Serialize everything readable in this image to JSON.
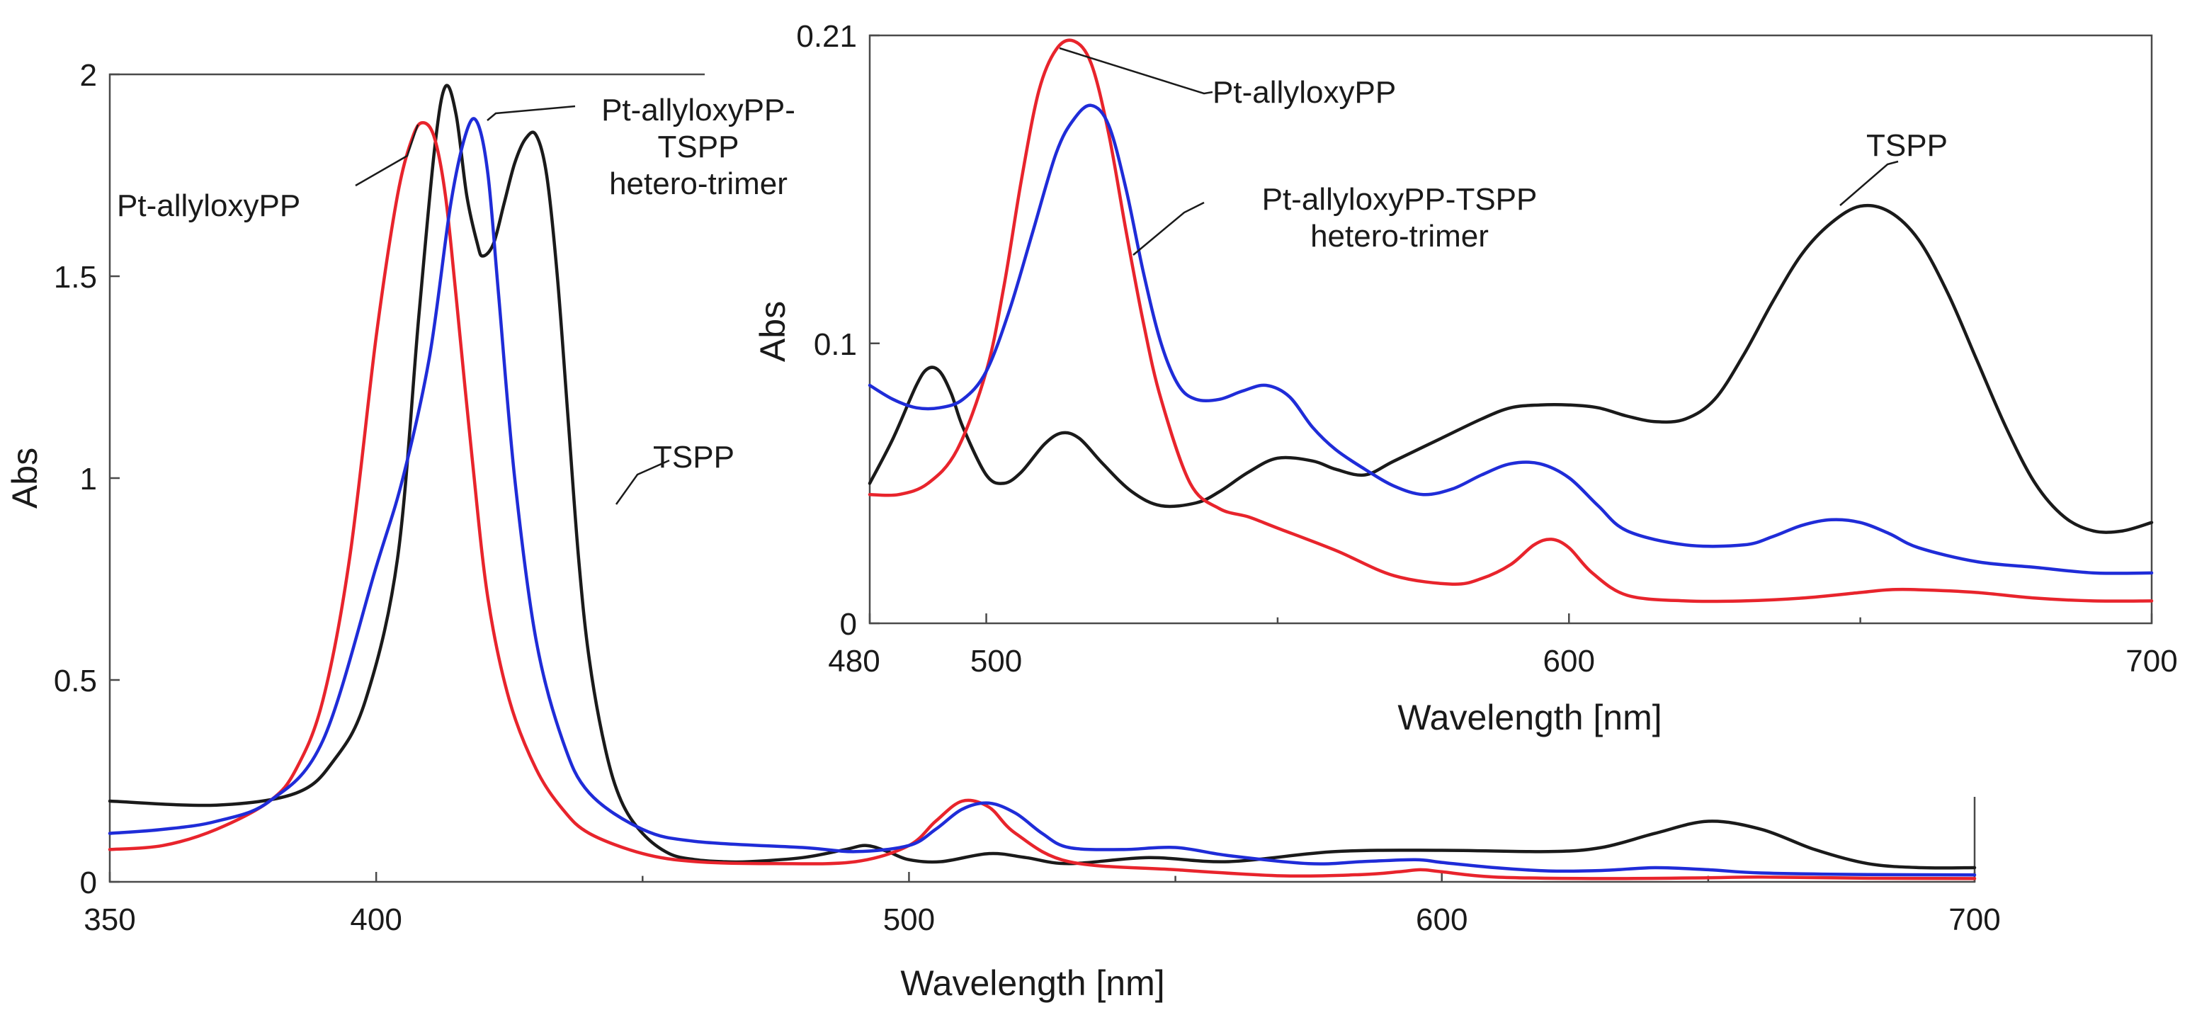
{
  "chart_data": [
    {
      "type": "line",
      "title": "",
      "xlabel": "Wavelength [nm]",
      "ylabel": "Abs",
      "xlim": [
        350,
        700
      ],
      "ylim": [
        0,
        2
      ],
      "x_ticks": [
        350,
        400,
        500,
        600,
        700
      ],
      "x_minor_ticks": [
        450,
        550,
        650
      ],
      "y_ticks": [
        0,
        0.5,
        1,
        1.5,
        2
      ],
      "x_tick_labels": [
        "350",
        "400",
        "500",
        "600",
        "700"
      ],
      "y_tick_labels": [
        "0",
        "0.5",
        "1",
        "1.5",
        "2"
      ],
      "series": [
        {
          "name": "TSPP",
          "color": "#1a1a1a",
          "x": [
            350,
            370,
            385,
            392,
            398,
            404,
            408,
            411,
            413,
            415,
            417,
            419,
            420,
            422,
            424,
            426,
            428,
            430,
            432,
            434,
            436,
            438,
            440,
            443,
            446,
            450,
            455,
            460,
            465,
            470,
            480,
            488,
            492,
            496,
            500,
            506,
            515,
            522,
            530,
            545,
            560,
            580,
            600,
            620,
            630,
            640,
            650,
            660,
            670,
            680,
            690,
            700
          ],
          "y": [
            0.2,
            0.19,
            0.22,
            0.3,
            0.45,
            0.8,
            1.4,
            1.82,
            1.97,
            1.9,
            1.7,
            1.58,
            1.55,
            1.58,
            1.68,
            1.78,
            1.84,
            1.85,
            1.75,
            1.5,
            1.15,
            0.8,
            0.55,
            0.33,
            0.2,
            0.12,
            0.07,
            0.055,
            0.05,
            0.05,
            0.06,
            0.08,
            0.09,
            0.075,
            0.055,
            0.05,
            0.07,
            0.06,
            0.045,
            0.06,
            0.05,
            0.075,
            0.078,
            0.075,
            0.085,
            0.12,
            0.15,
            0.13,
            0.08,
            0.045,
            0.035,
            0.035
          ]
        },
        {
          "name": "Pt-allyloxyPP",
          "color": "#e8242c",
          "x": [
            350,
            360,
            370,
            380,
            385,
            390,
            395,
            400,
            404,
            407,
            409,
            411,
            413,
            415,
            418,
            421,
            425,
            430,
            435,
            440,
            450,
            460,
            475,
            490,
            500,
            505,
            510,
            515,
            520,
            530,
            550,
            570,
            585,
            592,
            596,
            600,
            610,
            630,
            650,
            660,
            680,
            700
          ],
          "y": [
            0.08,
            0.09,
            0.13,
            0.2,
            0.28,
            0.45,
            0.8,
            1.35,
            1.7,
            1.85,
            1.88,
            1.84,
            1.7,
            1.45,
            1.05,
            0.7,
            0.45,
            0.28,
            0.18,
            0.12,
            0.07,
            0.05,
            0.045,
            0.05,
            0.09,
            0.15,
            0.2,
            0.185,
            0.12,
            0.05,
            0.03,
            0.015,
            0.018,
            0.025,
            0.03,
            0.025,
            0.012,
            0.008,
            0.01,
            0.012,
            0.009,
            0.008
          ]
        },
        {
          "name": "Pt-allyloxyPP-TSPP hetero-trimer",
          "color": "#1f2cd8",
          "x": [
            350,
            360,
            370,
            380,
            390,
            400,
            405,
            410,
            414,
            417,
            419,
            421,
            423,
            426,
            430,
            435,
            440,
            450,
            460,
            480,
            490,
            500,
            505,
            510,
            515,
            520,
            525,
            530,
            540,
            550,
            560,
            575,
            585,
            595,
            600,
            610,
            620,
            630,
            640,
            650,
            660,
            680,
            700
          ],
          "y": [
            0.12,
            0.13,
            0.15,
            0.2,
            0.35,
            0.78,
            1.0,
            1.3,
            1.68,
            1.86,
            1.88,
            1.75,
            1.45,
            1.0,
            0.6,
            0.35,
            0.22,
            0.13,
            0.1,
            0.085,
            0.075,
            0.09,
            0.13,
            0.18,
            0.195,
            0.17,
            0.12,
            0.085,
            0.08,
            0.085,
            0.065,
            0.045,
            0.05,
            0.055,
            0.048,
            0.035,
            0.027,
            0.028,
            0.035,
            0.03,
            0.022,
            0.018,
            0.017
          ]
        }
      ],
      "annotations": [
        {
          "target": "Pt-allyloxyPP",
          "lines": [
            "Pt-allyloxyPP"
          ]
        },
        {
          "target": "Pt-allyloxyPP-TSPP hetero-trimer",
          "lines": [
            "Pt-allyloxyPP-",
            "TSPP",
            "hetero-trimer"
          ]
        },
        {
          "target": "TSPP",
          "lines": [
            "TSPP"
          ]
        }
      ]
    },
    {
      "type": "line",
      "title": "",
      "xlabel": "Wavelength [nm]",
      "ylabel": "Abs",
      "xlim": [
        480,
        700
      ],
      "ylim": [
        0,
        0.21
      ],
      "x_ticks": [
        480,
        500,
        600,
        700
      ],
      "x_minor_ticks": [
        550,
        650
      ],
      "y_ticks": [
        0,
        0.1,
        0.21
      ],
      "x_tick_labels": [
        "480",
        "500",
        "600",
        "700"
      ],
      "y_tick_labels": [
        "0",
        "0.1",
        "0.21"
      ],
      "series": [
        {
          "name": "TSPP",
          "color": "#1a1a1a",
          "x": [
            480,
            484,
            488,
            490,
            492,
            494,
            496,
            500,
            503,
            506,
            510,
            513,
            516,
            520,
            525,
            530,
            536,
            540,
            545,
            550,
            556,
            560,
            565,
            570,
            578,
            585,
            590,
            595,
            600,
            605,
            610,
            615,
            620,
            625,
            630,
            635,
            640,
            645,
            650,
            655,
            660,
            665,
            670,
            675,
            680,
            685,
            690,
            695,
            700
          ],
          "y": [
            0.05,
            0.066,
            0.085,
            0.091,
            0.09,
            0.082,
            0.07,
            0.053,
            0.05,
            0.054,
            0.064,
            0.068,
            0.066,
            0.057,
            0.047,
            0.042,
            0.043,
            0.047,
            0.054,
            0.059,
            0.058,
            0.055,
            0.053,
            0.058,
            0.066,
            0.073,
            0.077,
            0.078,
            0.078,
            0.077,
            0.074,
            0.072,
            0.073,
            0.08,
            0.096,
            0.115,
            0.132,
            0.143,
            0.149,
            0.147,
            0.137,
            0.118,
            0.094,
            0.07,
            0.05,
            0.038,
            0.033,
            0.033,
            0.036
          ]
        },
        {
          "name": "Pt-allyloxyPP",
          "color": "#e8242c",
          "x": [
            480,
            485,
            490,
            495,
            500,
            503,
            506,
            509,
            512,
            515,
            518,
            521,
            524,
            527,
            530,
            535,
            540,
            545,
            550,
            560,
            570,
            580,
            585,
            590,
            594,
            597,
            600,
            604,
            610,
            620,
            630,
            640,
            650,
            655,
            660,
            670,
            680,
            690,
            700
          ],
          "y": [
            0.046,
            0.046,
            0.05,
            0.062,
            0.09,
            0.12,
            0.158,
            0.19,
            0.205,
            0.208,
            0.2,
            0.175,
            0.14,
            0.107,
            0.08,
            0.05,
            0.041,
            0.038,
            0.034,
            0.026,
            0.017,
            0.014,
            0.016,
            0.021,
            0.028,
            0.03,
            0.027,
            0.018,
            0.01,
            0.008,
            0.008,
            0.009,
            0.011,
            0.012,
            0.012,
            0.011,
            0.009,
            0.008,
            0.008
          ]
        },
        {
          "name": "Pt-allyloxyPP-TSPP hetero-trimer",
          "color": "#1f2cd8",
          "x": [
            480,
            484,
            488,
            492,
            496,
            500,
            504,
            508,
            512,
            515,
            518,
            521,
            524,
            527,
            530,
            533,
            536,
            540,
            544,
            548,
            552,
            556,
            560,
            565,
            570,
            575,
            580,
            585,
            590,
            595,
            600,
            605,
            610,
            620,
            630,
            635,
            640,
            645,
            650,
            655,
            660,
            670,
            680,
            690,
            700
          ],
          "y": [
            0.085,
            0.08,
            0.077,
            0.077,
            0.08,
            0.09,
            0.112,
            0.14,
            0.168,
            0.18,
            0.185,
            0.178,
            0.155,
            0.125,
            0.1,
            0.085,
            0.08,
            0.08,
            0.083,
            0.085,
            0.081,
            0.07,
            0.062,
            0.055,
            0.049,
            0.046,
            0.048,
            0.053,
            0.057,
            0.057,
            0.052,
            0.042,
            0.033,
            0.028,
            0.028,
            0.031,
            0.035,
            0.037,
            0.036,
            0.032,
            0.027,
            0.022,
            0.02,
            0.018,
            0.018
          ]
        }
      ],
      "annotations": [
        {
          "target": "Pt-allyloxyPP",
          "lines": [
            "Pt-allyloxyPP"
          ]
        },
        {
          "target": "Pt-allyloxyPP-TSPP hetero-trimer",
          "lines": [
            "Pt-allyloxyPP-TSPP",
            "hetero-trimer"
          ]
        },
        {
          "target": "TSPP",
          "lines": [
            "TSPP"
          ]
        }
      ]
    }
  ]
}
